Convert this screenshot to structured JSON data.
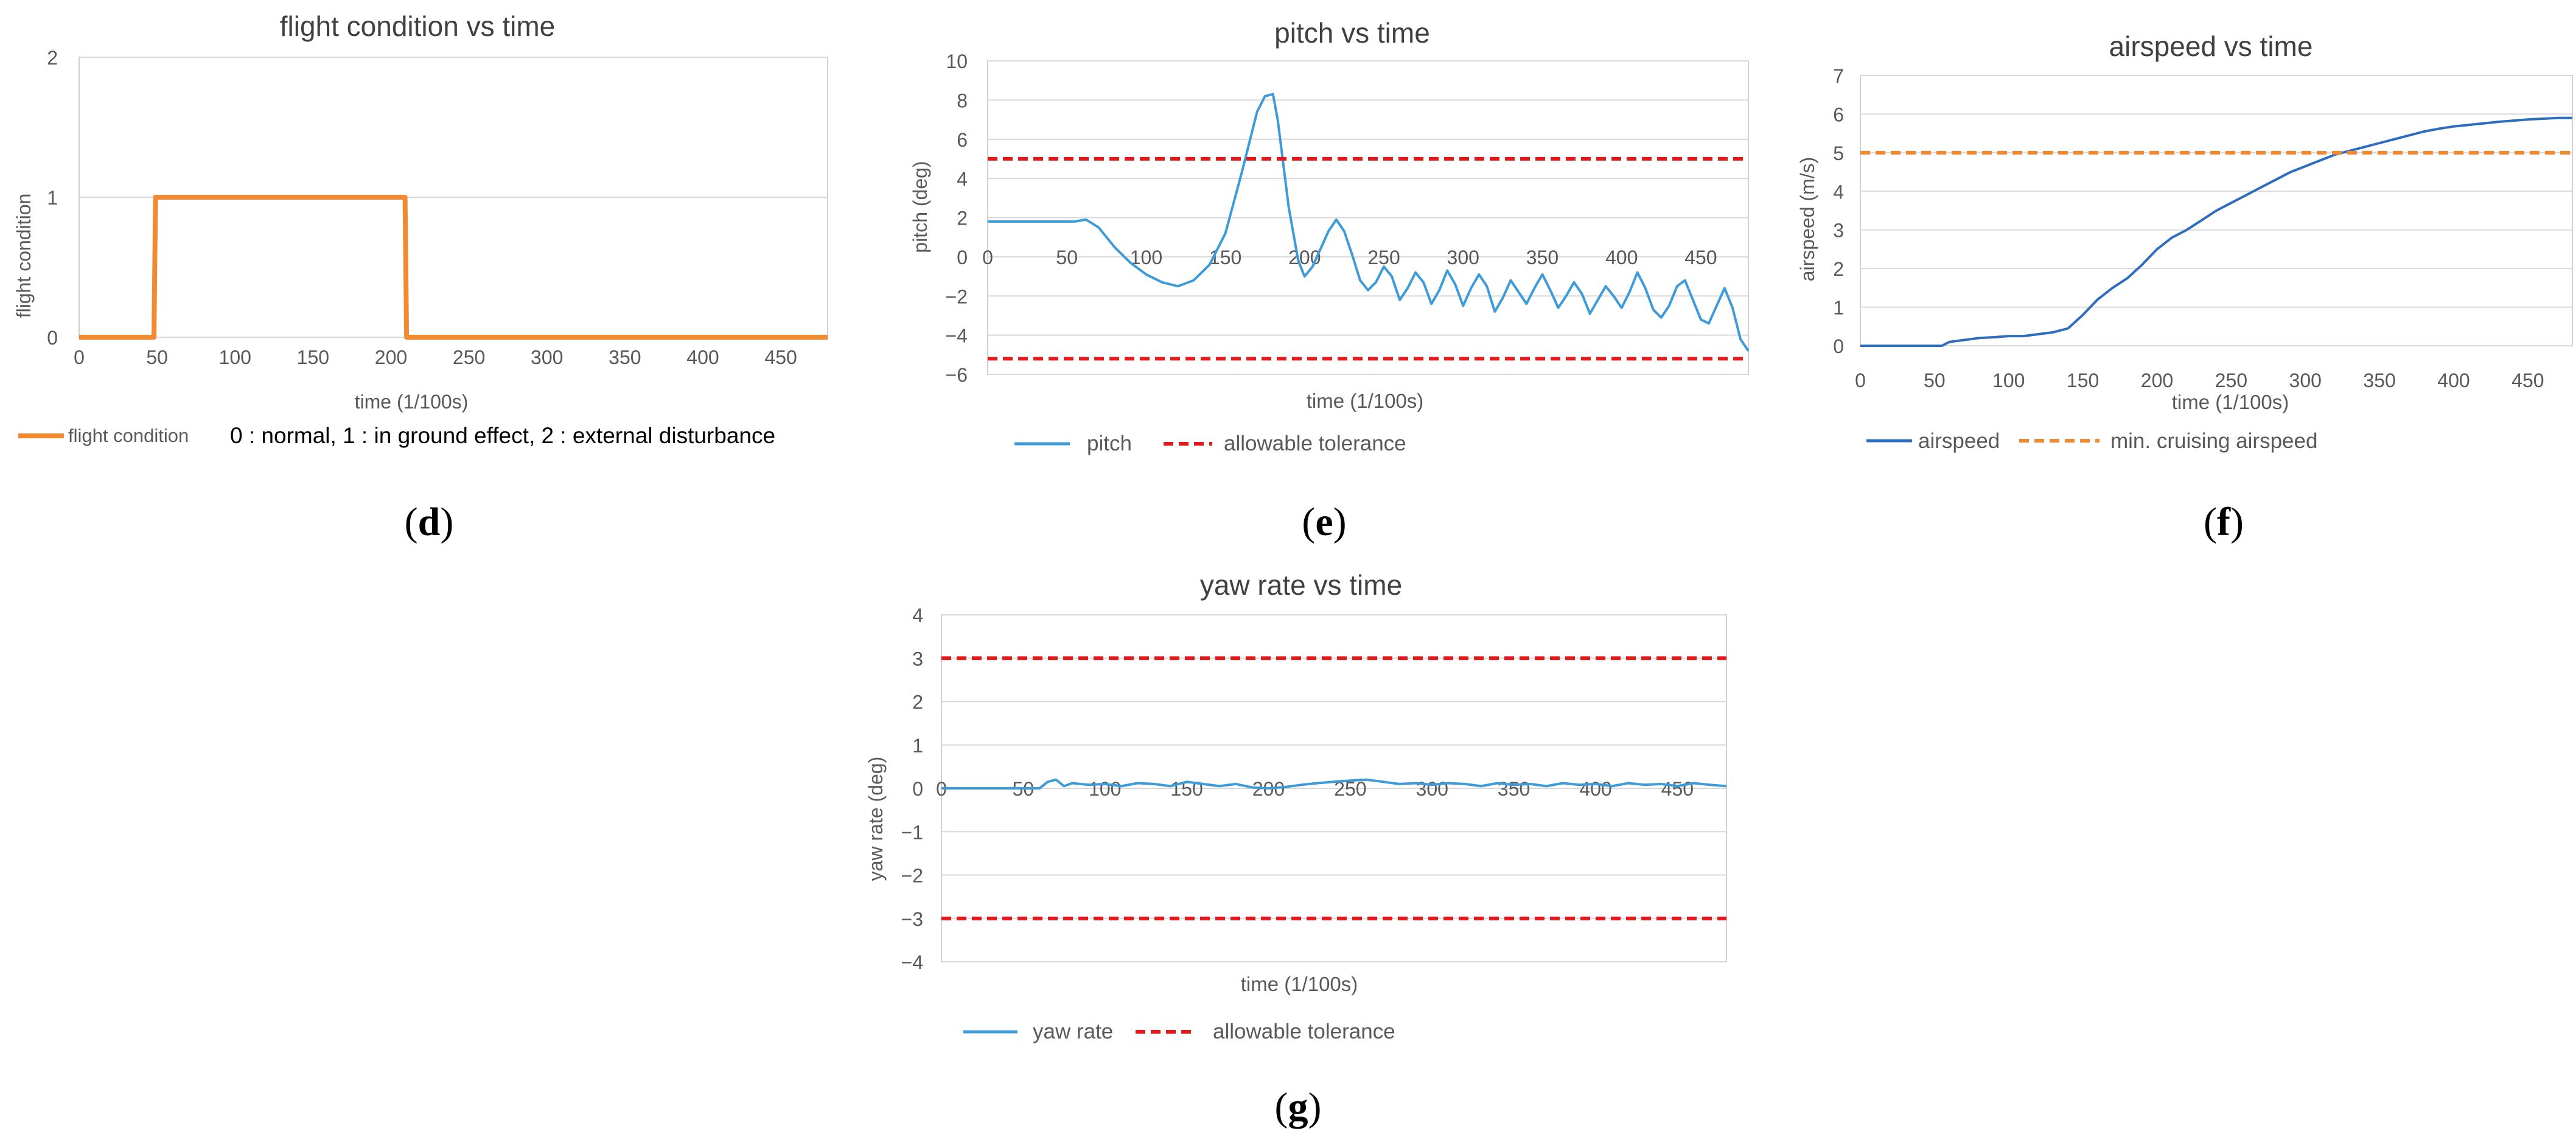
{
  "colors": {
    "orange": "#F28A33",
    "blue": "#3D9BD9",
    "dark_blue": "#2E6CC0",
    "red": "#E31A1C",
    "grid": "#D9D9D9",
    "axis": "#BFBFBF",
    "text": "#595959"
  },
  "chart_data": [
    {
      "id": "d",
      "type": "line",
      "caption": "d",
      "title": "flight condition vs time",
      "xlabel": "time (1/100s)",
      "ylabel": "flight condition",
      "xlim": [
        0,
        480
      ],
      "ylim": [
        0,
        2
      ],
      "xticks": [
        0,
        50,
        100,
        150,
        200,
        250,
        300,
        350,
        400,
        450
      ],
      "yticks": [
        0,
        1,
        2
      ],
      "grid": true,
      "series": [
        {
          "name": "flight condition",
          "style": "solid",
          "color": "orange",
          "x": [
            0,
            48,
            49,
            209,
            210,
            480
          ],
          "y": [
            0,
            0,
            1,
            1,
            0,
            0
          ]
        }
      ],
      "legend_note": "0 : normal, 1 : in ground effect, 2 : external disturbance"
    },
    {
      "id": "e",
      "type": "line",
      "caption": "e",
      "title": "pitch vs time",
      "xlabel": "time (1/100s)",
      "ylabel": "pitch  (deg)",
      "xlim": [
        0,
        480
      ],
      "ylim": [
        -6,
        10
      ],
      "xticks": [
        0,
        50,
        100,
        150,
        200,
        250,
        300,
        350,
        400,
        450
      ],
      "yticks": [
        10,
        8,
        6,
        4,
        2,
        0,
        -2,
        -4,
        -6
      ],
      "grid": true,
      "series": [
        {
          "name": "pitch",
          "style": "solid",
          "color": "blue",
          "x": [
            0,
            30,
            55,
            62,
            70,
            80,
            90,
            100,
            110,
            120,
            130,
            140,
            150,
            160,
            170,
            175,
            180,
            183,
            190,
            196,
            200,
            205,
            210,
            215,
            220,
            225,
            230,
            235,
            240,
            245,
            250,
            255,
            260,
            265,
            270,
            275,
            280,
            285,
            290,
            295,
            300,
            305,
            310,
            315,
            320,
            325,
            330,
            335,
            340,
            345,
            350,
            355,
            360,
            365,
            370,
            375,
            380,
            385,
            390,
            395,
            400,
            405,
            410,
            415,
            420,
            425,
            430,
            435,
            440,
            445,
            450,
            455,
            460,
            465,
            470,
            475,
            480
          ],
          "y": [
            1.8,
            1.8,
            1.8,
            1.9,
            1.5,
            0.5,
            -0.3,
            -0.9,
            -1.3,
            -1.5,
            -1.2,
            -0.4,
            1.2,
            4.2,
            7.4,
            8.2,
            8.3,
            7.0,
            2.5,
            -0.2,
            -1.0,
            -0.5,
            0.4,
            1.3,
            1.9,
            1.3,
            0.1,
            -1.2,
            -1.7,
            -1.3,
            -0.5,
            -1.0,
            -2.2,
            -1.6,
            -0.8,
            -1.3,
            -2.4,
            -1.7,
            -0.7,
            -1.4,
            -2.5,
            -1.6,
            -0.9,
            -1.5,
            -2.8,
            -2.1,
            -1.2,
            -1.8,
            -2.4,
            -1.6,
            -0.9,
            -1.7,
            -2.6,
            -2.0,
            -1.3,
            -1.9,
            -2.9,
            -2.2,
            -1.5,
            -2.0,
            -2.6,
            -1.8,
            -0.8,
            -1.6,
            -2.7,
            -3.1,
            -2.5,
            -1.5,
            -1.2,
            -2.2,
            -3.2,
            -3.4,
            -2.5,
            -1.6,
            -2.6,
            -4.2,
            -4.8
          ]
        },
        {
          "name": "allowable tolerance",
          "style": "dashed",
          "color": "red",
          "x": [
            0,
            480
          ],
          "y": [
            5,
            5
          ]
        },
        {
          "name": "allowable tolerance",
          "style": "dashed",
          "color": "red",
          "x": [
            0,
            480
          ],
          "y": [
            -5.2,
            -5.2
          ]
        }
      ],
      "legend": [
        "pitch",
        "allowable tolerance"
      ]
    },
    {
      "id": "f",
      "type": "line",
      "caption": "f",
      "title": "airspeed vs time",
      "xlabel": "time (1/100s)",
      "ylabel": "airspeed (m/s)",
      "xlim": [
        0,
        480
      ],
      "ylim": [
        0,
        7
      ],
      "xticks": [
        0,
        50,
        100,
        150,
        200,
        250,
        300,
        350,
        400,
        450
      ],
      "yticks": [
        7,
        6,
        5,
        4,
        3,
        2,
        1,
        0
      ],
      "grid": true,
      "series": [
        {
          "name": "airspeed",
          "style": "solid",
          "color": "dark_blue",
          "x": [
            0,
            55,
            60,
            70,
            80,
            90,
            100,
            110,
            120,
            130,
            140,
            150,
            160,
            170,
            180,
            190,
            200,
            210,
            220,
            230,
            240,
            250,
            260,
            270,
            280,
            290,
            300,
            310,
            320,
            330,
            340,
            350,
            360,
            370,
            380,
            390,
            400,
            410,
            420,
            430,
            440,
            450,
            460,
            470,
            480
          ],
          "y": [
            0,
            0,
            0.1,
            0.15,
            0.2,
            0.22,
            0.25,
            0.25,
            0.3,
            0.35,
            0.45,
            0.8,
            1.2,
            1.5,
            1.75,
            2.1,
            2.5,
            2.8,
            3.0,
            3.25,
            3.5,
            3.7,
            3.9,
            4.1,
            4.3,
            4.5,
            4.65,
            4.8,
            4.95,
            5.05,
            5.15,
            5.25,
            5.35,
            5.45,
            5.55,
            5.62,
            5.68,
            5.72,
            5.76,
            5.8,
            5.83,
            5.86,
            5.88,
            5.9,
            5.9
          ]
        },
        {
          "name": "min. cruising airspeed",
          "style": "dashed",
          "color": "orange",
          "x": [
            0,
            480
          ],
          "y": [
            5,
            5
          ]
        }
      ],
      "legend": [
        "airspeed",
        "min. cruising airspeed"
      ]
    },
    {
      "id": "g",
      "type": "line",
      "caption": "g",
      "title": "yaw rate vs time",
      "xlabel": "time (1/100s)",
      "ylabel": "yaw rate  (deg)",
      "xlim": [
        0,
        480
      ],
      "ylim": [
        -4,
        4
      ],
      "xticks": [
        0,
        50,
        100,
        150,
        200,
        250,
        300,
        350,
        400,
        450
      ],
      "yticks": [
        4,
        3,
        2,
        1,
        0,
        -1,
        -2,
        -3,
        -4
      ],
      "grid": true,
      "series": [
        {
          "name": "yaw rate",
          "style": "solid",
          "color": "blue",
          "x": [
            0,
            60,
            65,
            70,
            75,
            80,
            90,
            100,
            110,
            120,
            130,
            140,
            150,
            160,
            170,
            180,
            190,
            200,
            210,
            220,
            230,
            240,
            250,
            260,
            270,
            280,
            290,
            300,
            310,
            320,
            330,
            340,
            350,
            360,
            370,
            380,
            390,
            400,
            410,
            420,
            430,
            440,
            450,
            460,
            470,
            480
          ],
          "y": [
            0,
            0,
            0.15,
            0.2,
            0.05,
            0.12,
            0.08,
            0.1,
            0.05,
            0.12,
            0.1,
            0.05,
            0.15,
            0.1,
            0.05,
            0.1,
            0.02,
            0.0,
            0.03,
            0.08,
            0.12,
            0.15,
            0.18,
            0.2,
            0.15,
            0.1,
            0.12,
            0.08,
            0.12,
            0.1,
            0.05,
            0.12,
            0.08,
            0.1,
            0.05,
            0.12,
            0.08,
            0.1,
            0.05,
            0.12,
            0.08,
            0.1,
            0.05,
            0.12,
            0.08,
            0.05
          ]
        },
        {
          "name": "allowable tolerance",
          "style": "dashed",
          "color": "red",
          "x": [
            0,
            480
          ],
          "y": [
            3,
            3
          ]
        },
        {
          "name": "allowable tolerance",
          "style": "dashed",
          "color": "red",
          "x": [
            0,
            480
          ],
          "y": [
            -3,
            -3
          ]
        }
      ],
      "legend": [
        "yaw rate",
        "allowable tolerance"
      ]
    }
  ]
}
